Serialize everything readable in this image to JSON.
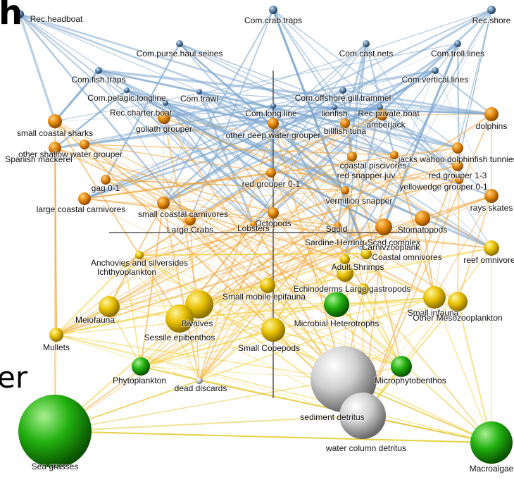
{
  "fragments": [
    "h",
    "er"
  ],
  "nodes": [
    {
      "label": "Rec.headboat"
    },
    {
      "label": "Com.crab.traps"
    },
    {
      "label": "Rec.shore"
    },
    {
      "label": "Com.purse.haul.seines"
    },
    {
      "label": "Com.cast.nets"
    },
    {
      "label": "Com.troll.lines"
    },
    {
      "label": "Com.fish.traps"
    },
    {
      "label": "Com.vertical.lines"
    },
    {
      "label": "Com.pelagic.longline"
    },
    {
      "label": "Com.trawl"
    },
    {
      "label": "Com.offshore.gill.trammel"
    },
    {
      "label": "Rec.charter.boat"
    },
    {
      "label": "Com.long.line"
    },
    {
      "label": "lionfish"
    },
    {
      "label": "Rec.private.boat"
    },
    {
      "label": "small coastal sharks"
    },
    {
      "label": "goliath grouper"
    },
    {
      "label": "other deep water grouper"
    },
    {
      "label": "billfish tuna"
    },
    {
      "label": "amberjack"
    },
    {
      "label": "dolphins"
    },
    {
      "label": "other shallow water grouper"
    },
    {
      "label": "Spanish mackerel"
    },
    {
      "label": "red snapper juv"
    },
    {
      "label": "coastal piscivores"
    },
    {
      "label": "jacks wahoo dolphinfish tunnies"
    },
    {
      "label": "red grouper 1-3"
    },
    {
      "label": "yellowedge grouper 0-1"
    },
    {
      "label": "rays skates"
    },
    {
      "label": "gag 0-1"
    },
    {
      "label": "large coastal carnivores"
    },
    {
      "label": "red grouper 0-1"
    },
    {
      "label": "vermilion snapper"
    },
    {
      "label": "small coastal carnivores"
    },
    {
      "label": "Large Crabs"
    },
    {
      "label": "Octopods"
    },
    {
      "label": "Lobsters"
    },
    {
      "label": "Squid"
    },
    {
      "label": "Stomatopods"
    },
    {
      "label": "Sardine-Herring-Scad complex"
    },
    {
      "label": "Carnivzooplank"
    },
    {
      "label": "Coastal omnivores"
    },
    {
      "label": "reef omnivores"
    },
    {
      "label": "Anchovies and silversides"
    },
    {
      "label": "Ichthyoplankton"
    },
    {
      "label": "Adult Shrimps"
    },
    {
      "label": "Echinoderms Large gastropods"
    },
    {
      "label": "Small mobile epifauna"
    },
    {
      "label": "Meiofauna"
    },
    {
      "label": "Bivalves"
    },
    {
      "label": "Sessile epibenthos"
    },
    {
      "label": "Microbial Heterotrophs"
    },
    {
      "label": "Small infauna"
    },
    {
      "label": "Other Mesozooplankton"
    },
    {
      "label": "Small Copepods"
    },
    {
      "label": "Mullets"
    },
    {
      "label": "Phytoplankton"
    },
    {
      "label": "dead discards"
    },
    {
      "label": "Microphytobenthos"
    },
    {
      "label": "sediment detritus"
    },
    {
      "label": "water column detritus"
    },
    {
      "label": "Sea grasses"
    },
    {
      "label": "Macroalgae"
    }
  ]
}
